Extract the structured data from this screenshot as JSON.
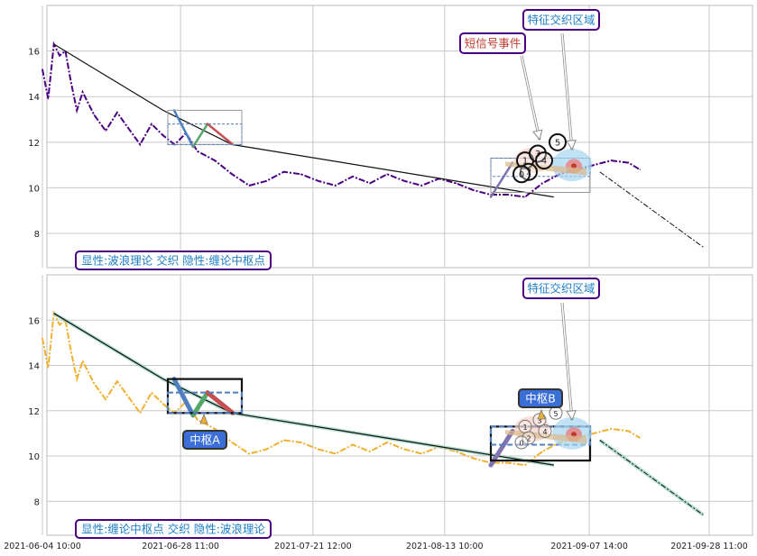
{
  "chart_data": [
    {
      "type": "line",
      "title": "",
      "xlabel": "",
      "ylabel": "",
      "ylim": [
        6.5,
        18.0
      ],
      "yticks": [
        8,
        10,
        12,
        14,
        16
      ],
      "grid": true,
      "price_color": "#4b0082",
      "price_style": "dashdot",
      "series": [
        {
          "x": [
            "2021-06-04 10:00",
            "2021-06-05 10:00",
            "2021-06-06 10:00",
            "2021-06-07 10:00",
            "2021-06-08 10:00",
            "2021-06-09 10:00",
            "2021-06-10 10:00",
            "2021-06-11 10:00",
            "2021-06-13 10:00",
            "2021-06-15 10:00",
            "2021-06-17 10:00",
            "2021-06-19 10:00",
            "2021-06-21 10:00",
            "2021-06-23 10:00",
            "2021-06-25 10:00",
            "2021-06-27 10:00",
            "2021-06-29 10:00",
            "2021-07-01 10:00",
            "2021-07-04 10:00",
            "2021-07-07 10:00",
            "2021-07-10 10:00",
            "2021-07-13 10:00",
            "2021-07-16 10:00",
            "2021-07-19 10:00",
            "2021-07-22 10:00",
            "2021-07-25 10:00",
            "2021-07-28 10:00",
            "2021-07-31 10:00",
            "2021-08-03 10:00",
            "2021-08-06 10:00",
            "2021-08-09 10:00",
            "2021-08-12 10:00",
            "2021-08-15 10:00",
            "2021-08-18 10:00",
            "2021-08-21 10:00",
            "2021-08-24 10:00",
            "2021-08-27 10:00",
            "2021-08-30 10:00",
            "2021-09-02 10:00",
            "2021-09-05 10:00",
            "2021-09-08 10:00",
            "2021-09-11 10:00",
            "2021-09-14 10:00",
            "2021-09-16 10:00"
          ],
          "values": [
            15.2,
            13.9,
            16.3,
            15.8,
            16.0,
            14.6,
            13.4,
            14.2,
            13.2,
            12.5,
            13.3,
            12.6,
            11.9,
            12.8,
            12.3,
            11.9,
            12.4,
            11.6,
            11.2,
            10.6,
            10.1,
            10.3,
            10.7,
            10.6,
            10.3,
            10.1,
            10.5,
            10.2,
            10.6,
            10.3,
            10.1,
            10.4,
            10.2,
            9.9,
            9.7,
            9.7,
            9.6,
            10.2,
            10.6,
            10.8,
            11.0,
            11.2,
            11.1,
            10.8
          ]
        }
      ],
      "x_tick_labels": [
        "2021-06-04 10:00",
        "2021-06-28 11:00",
        "2021-07-21 12:00",
        "2021-08-13 10:00",
        "2021-09-07 14:00",
        "2021-09-28 11:00"
      ],
      "wave_line": {
        "x": [
          "2021-06-06 10:00",
          "2021-06-25 10:00",
          "2021-07-07 10:00",
          "2021-09-01 10:00"
        ],
        "values": [
          16.3,
          13.4,
          11.9,
          9.6
        ]
      },
      "projection": {
        "x": [
          "2021-09-09 10:00",
          "2021-09-27 10:00"
        ],
        "values": [
          10.7,
          7.4
        ]
      },
      "annotations": {
        "signal_label": "短信号事件",
        "zone_label": "特征交织区域",
        "bottom_label": "显性:波浪理论 交织 隐性:缠论中枢点",
        "signal_numbers": [
          "1",
          "2",
          "3",
          "4",
          "5",
          "0"
        ]
      }
    },
    {
      "type": "line",
      "title": "",
      "xlabel": "",
      "ylabel": "",
      "ylim": [
        6.5,
        18.0
      ],
      "yticks": [
        8,
        10,
        12,
        14,
        16
      ],
      "grid": true,
      "price_color": "#f0b030",
      "price_style": "dashdot",
      "series": [
        {
          "x": [
            "2021-06-04 10:00",
            "2021-06-05 10:00",
            "2021-06-06 10:00",
            "2021-06-07 10:00",
            "2021-06-08 10:00",
            "2021-06-09 10:00",
            "2021-06-10 10:00",
            "2021-06-11 10:00",
            "2021-06-13 10:00",
            "2021-06-15 10:00",
            "2021-06-17 10:00",
            "2021-06-19 10:00",
            "2021-06-21 10:00",
            "2021-06-23 10:00",
            "2021-06-25 10:00",
            "2021-06-27 10:00",
            "2021-06-29 10:00",
            "2021-07-01 10:00",
            "2021-07-04 10:00",
            "2021-07-07 10:00",
            "2021-07-10 10:00",
            "2021-07-13 10:00",
            "2021-07-16 10:00",
            "2021-07-19 10:00",
            "2021-07-22 10:00",
            "2021-07-25 10:00",
            "2021-07-28 10:00",
            "2021-07-31 10:00",
            "2021-08-03 10:00",
            "2021-08-06 10:00",
            "2021-08-09 10:00",
            "2021-08-12 10:00",
            "2021-08-15 10:00",
            "2021-08-18 10:00",
            "2021-08-21 10:00",
            "2021-08-24 10:00",
            "2021-08-27 10:00",
            "2021-08-30 10:00",
            "2021-09-02 10:00",
            "2021-09-05 10:00",
            "2021-09-08 10:00",
            "2021-09-11 10:00",
            "2021-09-14 10:00",
            "2021-09-16 10:00"
          ],
          "values": [
            15.2,
            13.9,
            16.3,
            15.8,
            16.0,
            14.6,
            13.4,
            14.2,
            13.2,
            12.5,
            13.3,
            12.6,
            11.9,
            12.8,
            12.3,
            11.9,
            12.4,
            11.6,
            11.2,
            10.6,
            10.1,
            10.3,
            10.7,
            10.6,
            10.3,
            10.1,
            10.5,
            10.2,
            10.6,
            10.3,
            10.1,
            10.4,
            10.2,
            9.9,
            9.7,
            9.7,
            9.6,
            10.2,
            10.6,
            10.8,
            11.0,
            11.2,
            11.1,
            10.8
          ]
        }
      ],
      "x_tick_labels": [
        "2021-06-04 10:00",
        "2021-06-28 11:00",
        "2021-07-21 12:00",
        "2021-08-13 10:00",
        "2021-09-07 14:00",
        "2021-09-28 11:00"
      ],
      "wave_line": {
        "x": [
          "2021-06-06 10:00",
          "2021-06-25 10:00",
          "2021-07-07 10:00",
          "2021-09-01 10:00"
        ],
        "values": [
          16.3,
          13.4,
          11.9,
          9.6
        ]
      },
      "projection": {
        "x": [
          "2021-09-09 10:00",
          "2021-09-27 10:00"
        ],
        "values": [
          10.7,
          7.4
        ]
      },
      "annotations": {
        "pivot_a_label": "中枢A",
        "pivot_b_label": "中枢B",
        "zone_label": "特征交织区域",
        "bottom_label": "显性:缠论中枢点 交织 隐性:波浪理论",
        "signal_numbers": [
          "1",
          "2",
          "3",
          "4",
          "5",
          "0"
        ]
      }
    }
  ],
  "colors": {
    "grid": "#c8c8c8",
    "label_border": "#4b0082",
    "label_text": "#1e7ec8",
    "signal_text": "#c0392b",
    "pivot_fill": "#3a6fd8",
    "wave_blue": "#4f7fc0",
    "wave_green": "#55a868",
    "wave_red": "#c44e52",
    "wave_purple": "#8172b2"
  }
}
